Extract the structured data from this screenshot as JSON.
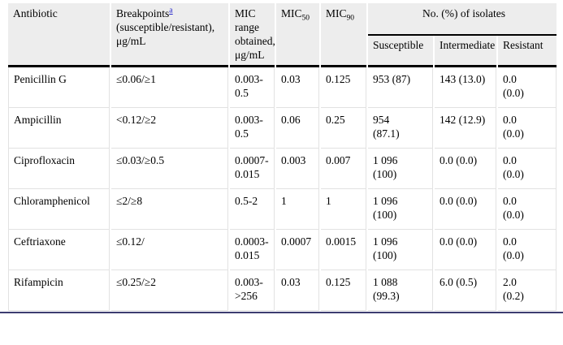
{
  "header": {
    "antibiotic": "Antibiotic",
    "breakpoints": {
      "base": "Breakpoints",
      "footnote": "a",
      "rest": "(susceptible/resistant), μg/mL"
    },
    "mic_range": "MIC range obtained, μg/mL",
    "mic50": {
      "base": "MIC",
      "sub": "50"
    },
    "mic90": {
      "base": "MIC",
      "sub": "90"
    },
    "isolates_group": "No. (%) of isolates",
    "sub_columns": {
      "susceptible": "Susceptible",
      "intermediate": "Intermediate",
      "resistant": "Resistant"
    }
  },
  "rows": [
    {
      "antibiotic": "Penicillin G",
      "breakpoints": "≤0.06/≥1",
      "mic_range": "0.003-0.5",
      "mic50": "0.03",
      "mic90": "0.125",
      "susceptible": "953 (87)",
      "intermediate": "143 (13.0)",
      "resistant": "0.0 (0.0)"
    },
    {
      "antibiotic": "Ampicillin",
      "breakpoints": "<0.12/≥2",
      "mic_range": "0.003-0.5",
      "mic50": "0.06",
      "mic90": "0.25",
      "susceptible": "954 (87.1)",
      "intermediate": "142 (12.9)",
      "resistant": "0.0 (0.0)"
    },
    {
      "antibiotic": "Ciprofloxacin",
      "breakpoints": "≤0.03/≥0.5",
      "mic_range": "0.0007-0.015",
      "mic50": "0.003",
      "mic90": "0.007",
      "susceptible": "1 096 (100)",
      "intermediate": "0.0 (0.0)",
      "resistant": "0.0 (0.0)"
    },
    {
      "antibiotic": "Chloramphenicol",
      "breakpoints": "≤2/≥8",
      "mic_range": "0.5-2",
      "mic50": "1",
      "mic90": "1",
      "susceptible": "1 096 (100)",
      "intermediate": "0.0 (0.0)",
      "resistant": "0.0 (0.0)"
    },
    {
      "antibiotic": "Ceftriaxone",
      "breakpoints": "≤0.12/",
      "mic_range": "0.0003-0.015",
      "mic50": "0.0007",
      "mic90": "0.0015",
      "susceptible": "1 096 (100)",
      "intermediate": "0.0 (0.0)",
      "resistant": "0.0 (0.0)"
    },
    {
      "antibiotic": "Rifampicin",
      "breakpoints": "≤0.25/≥2",
      "mic_range": "0.003->256",
      "mic50": "0.03",
      "mic90": "0.125",
      "susceptible": "1 088 (99.3)",
      "intermediate": "6.0 (0.5)",
      "resistant": "2.0 (0.2)"
    }
  ],
  "colors": {
    "header_bg": "#ededed",
    "grid_line": "#e2e2e2",
    "header_rule": "#000000",
    "bottom_rule": "#3d3d70",
    "footnote_link": "#2a2acc"
  }
}
